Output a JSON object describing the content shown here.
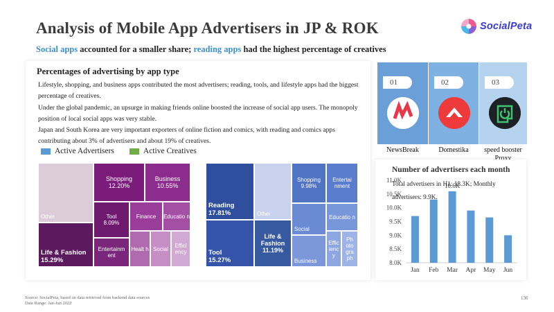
{
  "header": {
    "title": "Analysis of Mobile App Advertisers in JP & ROK",
    "subtitle_parts": [
      {
        "text": "Social apps",
        "highlight": true
      },
      {
        "text": " accounted for a smaller share; ",
        "highlight": false
      },
      {
        "text": "reading apps",
        "highlight": true
      },
      {
        "text": " had the highest percentage of creatives",
        "highlight": false
      }
    ],
    "logo_text": "SocialPeta"
  },
  "colors": {
    "accent_blue": "#3a8fd6",
    "advertisers_legend": "#5b9bd5",
    "creatives_legend": "#70ad47",
    "purple_dark": "#5c1a5e",
    "blue_dark": "#2f4f9e"
  },
  "left_panel": {
    "heading": "Percentages of advertising by app type",
    "paragraphs": [
      "Lifestyle, shopping, and business apps contributed the most advertisers; reading, tools, and lifestyle apps had the biggest percentage of creatives.",
      "Under the global pandemic, an upsurge in making friends online boosted the increase of social app users. The monopoly position of local social apps was very stable.",
      "Japan and South Korea are very important exporters of online fiction and comics, with reading and comics apps contributing about 3% of advertisers and about 19% of creatives."
    ],
    "legend": {
      "advertisers": "Active Advertisers",
      "creatives": "Active Creatives"
    }
  },
  "treemap_advertisers": [
    {
      "label": "Other",
      "value": ""
    },
    {
      "label": "Life & Fashion",
      "value": "15.29%"
    },
    {
      "label": "Shopping",
      "value": "12.20%"
    },
    {
      "label": "Business",
      "value": "10.55%"
    },
    {
      "label": "Tool",
      "value": "8.09%"
    },
    {
      "label": "Finance",
      "value": ""
    },
    {
      "label": "Educatio n",
      "value": ""
    },
    {
      "label": "Entertainm ent",
      "value": ""
    },
    {
      "label": "Healt h",
      "value": ""
    },
    {
      "label": "Social",
      "value": ""
    },
    {
      "label": "Effici ency",
      "value": ""
    }
  ],
  "treemap_creatives": [
    {
      "label": "Reading",
      "value": "17.81%"
    },
    {
      "label": "Tool",
      "value": "15.27%"
    },
    {
      "label": "Other",
      "value": ""
    },
    {
      "label": "Life & Fashion",
      "value": "11.19%"
    },
    {
      "label": "Shopping",
      "value": "9.98%"
    },
    {
      "label": "Entertai nment",
      "value": ""
    },
    {
      "label": "Social",
      "value": ""
    },
    {
      "label": "Educatio n",
      "value": ""
    },
    {
      "label": "Business",
      "value": ""
    },
    {
      "label": "Effic ienc y",
      "value": ""
    },
    {
      "label": "Ph oto gra ph",
      "value": ""
    }
  ],
  "top_apps": [
    {
      "rank": "01",
      "name": "NewsBreak",
      "icon": "newsbreak-icon"
    },
    {
      "rank": "02",
      "name": "Domestika",
      "icon": "domestika-icon"
    },
    {
      "rank": "03",
      "name": "speed booster Proxy",
      "icon": "speed-booster-icon"
    }
  ],
  "monthly_panel": {
    "title": "Number of advertisers each month",
    "note": "Total advertisers in H1: 18.3K; Monthly advertisers: 9.9K."
  },
  "chart_data": {
    "type": "bar",
    "title": "Number of advertisers each month",
    "categories": [
      "Jan",
      "Feb",
      "Mar",
      "Apr",
      "May",
      "Jun"
    ],
    "values": [
      9.7,
      10.3,
      10.6,
      9.9,
      9.65,
      9.0
    ],
    "value_unit": "K",
    "data_labels": [
      {
        "index": 2,
        "text": "10.6K"
      }
    ],
    "yticks": [
      "8.0K",
      "8.5K",
      "9.0K",
      "9.5K",
      "10.0K",
      "10.5K",
      "11.0K"
    ],
    "ylim": [
      8.0,
      11.0
    ],
    "grid": false,
    "bar_color": "#5b9bd5"
  },
  "footer": {
    "source": "Source: SocialPeta, based on data retrieved from backend data sources",
    "date_range": "Date Range: Jan-Jun 2022",
    "page_number": "136"
  }
}
